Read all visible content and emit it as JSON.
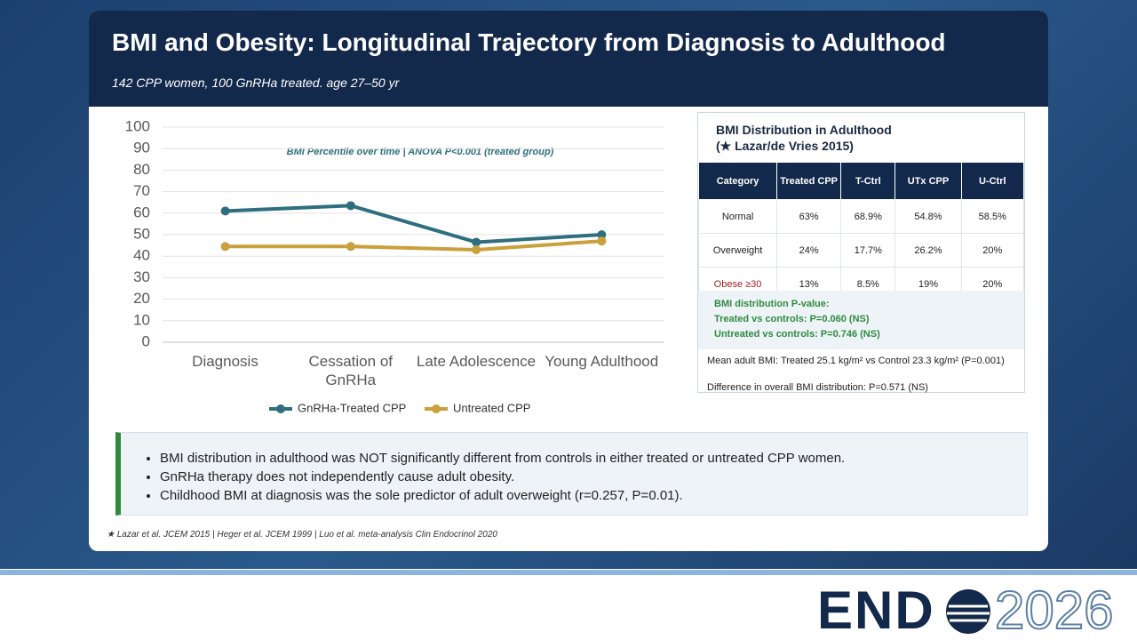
{
  "header": {
    "title": "BMI and Obesity: Longitudinal Trajectory from Diagnosis to Adulthood",
    "subtitle": "142 CPP women, 100  GnRHa treated. age 27–50 yr"
  },
  "chart_data": {
    "type": "line",
    "title": "BMI Percentile over time  |  ANOVA P<0.001 (treated group)",
    "categories": [
      "Diagnosis",
      "Cessation of GnRHa",
      "Late Adolescence",
      "Young Adulthood"
    ],
    "series": [
      {
        "name": "GnRHa-Treated CPP",
        "color": "#2e6e7e",
        "values": [
          61,
          63.5,
          46.5,
          50
        ]
      },
      {
        "name": "Untreated CPP",
        "color": "#c9a03c",
        "values": [
          44.5,
          44.5,
          43,
          47
        ]
      }
    ],
    "ylim": [
      0,
      100
    ],
    "yticks": [
      0,
      10,
      20,
      30,
      40,
      50,
      60,
      70,
      80,
      90,
      100
    ],
    "grid": true,
    "legend": "bottom"
  },
  "table": {
    "title": "BMI Distribution in Adulthood",
    "subtitle": "(★ Lazar/de Vries 2015)",
    "headers": [
      "Category",
      "Treated CPP",
      "T-Ctrl",
      "UTx CPP",
      "U-Ctrl"
    ],
    "rows": [
      [
        "Normal",
        "63%",
        "68.9%",
        "54.8%",
        "58.5%"
      ],
      [
        "Overweight",
        "24%",
        "17.7%",
        "26.2%",
        "20%"
      ],
      [
        "Obese ≥30",
        "13%",
        "8.5%",
        "19%",
        "20%"
      ]
    ],
    "pvalue": [
      "BMI distribution P-value:",
      "Treated vs controls: P=0.060 (NS)",
      "Untreated vs controls: P=0.746 (NS)"
    ],
    "notes": [
      "Mean adult BMI: Treated 25.1 kg/m² vs Control 23.3 kg/m² (P=0.001)",
      "Difference in overall BMI distribution: P=0.571 (NS)"
    ]
  },
  "bullets": [
    "BMI distribution in adulthood was NOT significantly different from controls in either treated or untreated CPP women.",
    "GnRHa therapy does not independently cause adult obesity.",
    "Childhood BMI at diagnosis was the sole predictor of adult overweight (r=0.257, P=0.01)."
  ],
  "footnote": "★ Lazar et al. JCEM 2015 | Heger et al. JCEM 1999 | Luo et al. meta-analysis Clin Endocrinol 2020",
  "logo": {
    "left": "END",
    "right": "2026"
  }
}
